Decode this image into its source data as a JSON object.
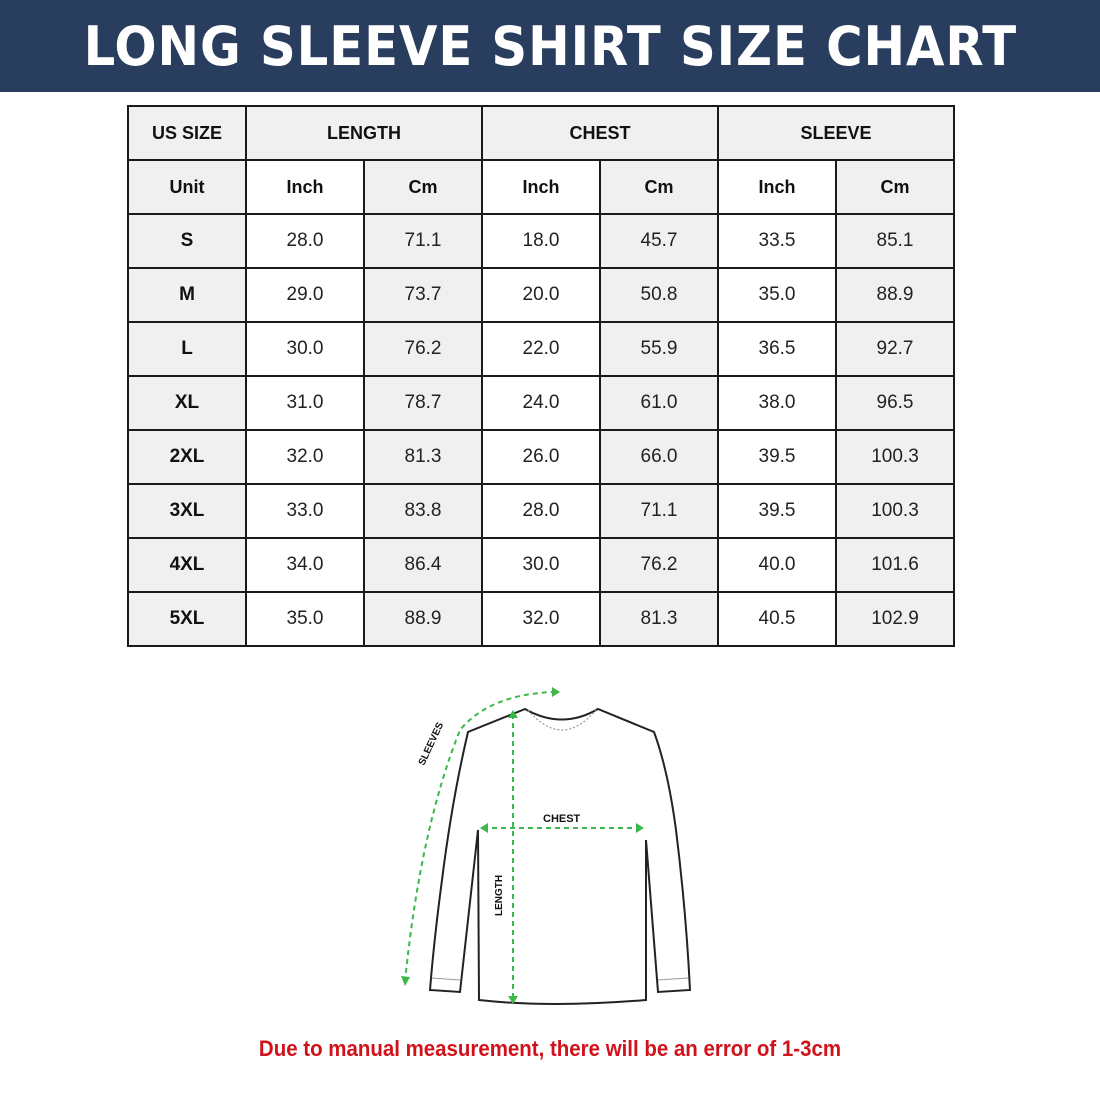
{
  "title": "LONG SLEEVE SHIRT SIZE CHART",
  "colors": {
    "banner": "#293d5e",
    "note": "#d0121b",
    "measure_lines": "#3cb84a"
  },
  "table": {
    "headers": [
      "US SIZE",
      "LENGTH",
      "CHEST",
      "SLEEVE"
    ],
    "unit_row": [
      "Unit",
      "Inch",
      "Cm",
      "Inch",
      "Cm",
      "Inch",
      "Cm"
    ],
    "rows": [
      [
        "S",
        "28.0",
        "71.1",
        "18.0",
        "45.7",
        "33.5",
        "85.1"
      ],
      [
        "M",
        "29.0",
        "73.7",
        "20.0",
        "50.8",
        "35.0",
        "88.9"
      ],
      [
        "L",
        "30.0",
        "76.2",
        "22.0",
        "55.9",
        "36.5",
        "92.7"
      ],
      [
        "XL",
        "31.0",
        "78.7",
        "24.0",
        "61.0",
        "38.0",
        "96.5"
      ],
      [
        "2XL",
        "32.0",
        "81.3",
        "26.0",
        "66.0",
        "39.5",
        "100.3"
      ],
      [
        "3XL",
        "33.0",
        "83.8",
        "28.0",
        "71.1",
        "39.5",
        "100.3"
      ],
      [
        "4XL",
        "34.0",
        "86.4",
        "30.0",
        "76.2",
        "40.0",
        "101.6"
      ],
      [
        "5XL",
        "35.0",
        "88.9",
        "32.0",
        "81.3",
        "40.5",
        "102.9"
      ]
    ]
  },
  "diagram": {
    "sleeves_label": "SLEEVES",
    "chest_label": "CHEST",
    "length_label": "LENGTH"
  },
  "note": "Due to manual measurement, there will be an error of 1-3cm"
}
